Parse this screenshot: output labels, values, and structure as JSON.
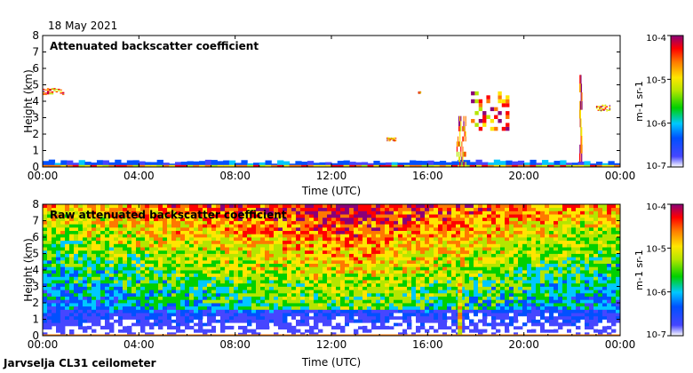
{
  "date": "18 May 2021",
  "site_label": "Jarvselja CL31 ceilometer",
  "chart_data": [
    {
      "type": "heatmap",
      "title": "Attenuated backscatter coefficient",
      "xlabel": "Time (UTC)",
      "ylabel": "Height (km)",
      "x_ticks": [
        "00:00",
        "04:00",
        "08:00",
        "12:00",
        "16:00",
        "20:00",
        "00:00"
      ],
      "y_ticks": [
        "0",
        "1",
        "2",
        "3",
        "4",
        "5",
        "6",
        "7",
        "8"
      ],
      "x_range_hours": [
        0,
        24
      ],
      "y_range_km": [
        0,
        8
      ],
      "colorbar": {
        "label": "m-1 sr-1",
        "scale": "log",
        "range": [
          1e-07,
          0.0001
        ],
        "ticks": [
          "10-4",
          "10-5",
          "10-6",
          "10-7"
        ]
      },
      "features": [
        {
          "name": "boundary layer / near-surface backscatter",
          "time_h": [
            0,
            24
          ],
          "height_km": [
            0,
            0.4
          ]
        },
        {
          "name": "cloud 1",
          "time_h": [
            0.0,
            0.9
          ],
          "height_km": [
            4.4,
            4.8
          ]
        },
        {
          "name": "cloud 2",
          "time_h": [
            14.3,
            14.7
          ],
          "height_km": [
            1.6,
            1.8
          ]
        },
        {
          "name": "cloud 3",
          "time_h": [
            15.6,
            15.7
          ],
          "height_km": [
            4.5,
            4.6
          ]
        },
        {
          "name": "cloud 4",
          "time_h": [
            17.8,
            19.4
          ],
          "height_km": [
            2.2,
            4.6
          ]
        },
        {
          "name": "rain / virga",
          "time_h": [
            17.2,
            17.6
          ],
          "height_km": [
            0,
            3.1
          ]
        },
        {
          "name": "thin column",
          "time_h": [
            22.3,
            22.4
          ],
          "height_km": [
            0.3,
            5.6
          ]
        },
        {
          "name": "cloud 5",
          "time_h": [
            23.0,
            23.6
          ],
          "height_km": [
            3.4,
            3.8
          ]
        }
      ]
    },
    {
      "type": "heatmap",
      "title": "Raw attenuated backscatter coefficient",
      "xlabel": "Time (UTC)",
      "ylabel": "Height (km)",
      "x_ticks": [
        "00:00",
        "04:00",
        "08:00",
        "12:00",
        "16:00",
        "20:00",
        "00:00"
      ],
      "y_ticks": [
        "0",
        "1",
        "2",
        "3",
        "4",
        "5",
        "6",
        "7",
        "8"
      ],
      "x_range_hours": [
        0,
        24
      ],
      "y_range_km": [
        0,
        8
      ],
      "colorbar": {
        "label": "m-1 sr-1",
        "scale": "log",
        "range": [
          1e-07,
          0.0001
        ],
        "ticks": [
          "10-4",
          "10-5",
          "10-6",
          "10-7"
        ]
      },
      "features": [
        {
          "name": "noise-dominated upper region, maximum around midday",
          "time_h": [
            0,
            24
          ],
          "height_km": [
            2,
            8
          ]
        },
        {
          "name": "low signal region",
          "time_h": [
            0,
            24
          ],
          "height_km": [
            0,
            2
          ]
        },
        {
          "name": "rain column",
          "time_h": [
            17.2,
            17.6
          ],
          "height_km": [
            0,
            3.5
          ]
        }
      ]
    }
  ]
}
